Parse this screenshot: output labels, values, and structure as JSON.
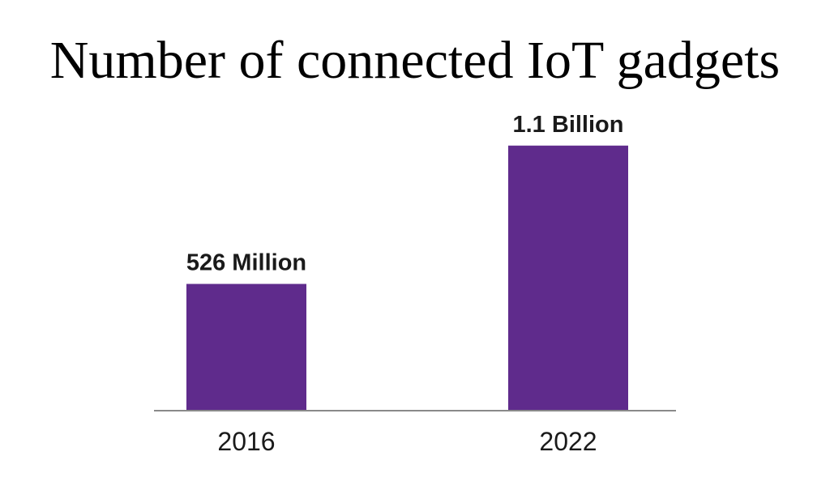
{
  "chart_data": {
    "type": "bar",
    "title": "Number of connected IoT gadgets",
    "categories": [
      "2016",
      "2022"
    ],
    "values": [
      526000000,
      1100000000
    ],
    "data_labels": [
      "526 Million",
      "1.1 Billion"
    ],
    "xlabel": "",
    "ylabel": "",
    "ylim": [
      0,
      1200000000
    ],
    "grid": false,
    "legend": "none",
    "colors": {
      "bar": "#5f2b8c",
      "axis": "#8a8a8a",
      "text": "#1a1a1a"
    }
  }
}
